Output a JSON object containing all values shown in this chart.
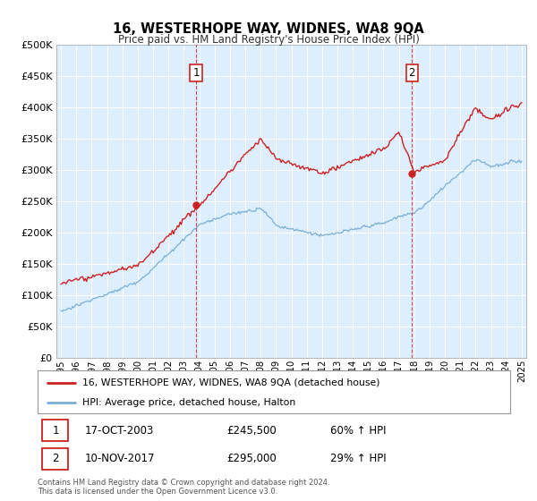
{
  "title": "16, WESTERHOPE WAY, WIDNES, WA8 9QA",
  "subtitle": "Price paid vs. HM Land Registry's House Price Index (HPI)",
  "legend_line1": "16, WESTERHOPE WAY, WIDNES, WA8 9QA (detached house)",
  "legend_line2": "HPI: Average price, detached house, Halton",
  "sale1_label": "1",
  "sale1_date": "17-OCT-2003",
  "sale1_price": "£245,500",
  "sale1_hpi": "60% ↑ HPI",
  "sale1_year": 2003.79,
  "sale1_value": 245500,
  "sale2_label": "2",
  "sale2_date": "10-NOV-2017",
  "sale2_price": "£295,000",
  "sale2_hpi": "29% ↑ HPI",
  "sale2_year": 2017.86,
  "sale2_value": 295000,
  "hpi_color": "#7bafd4",
  "price_color": "#cc2222",
  "bg_color": "#ddeeff",
  "footnote1": "Contains HM Land Registry data © Crown copyright and database right 2024.",
  "footnote2": "This data is licensed under the Open Government Licence v3.0.",
  "ylim": [
    0,
    500000
  ],
  "yticks": [
    0,
    50000,
    100000,
    150000,
    200000,
    250000,
    300000,
    350000,
    400000,
    450000,
    500000
  ],
  "xlim_start": 1994.7,
  "xlim_end": 2025.3,
  "xticks": [
    1995,
    1996,
    1997,
    1998,
    1999,
    2000,
    2001,
    2002,
    2003,
    2004,
    2005,
    2006,
    2007,
    2008,
    2009,
    2010,
    2011,
    2012,
    2013,
    2014,
    2015,
    2016,
    2017,
    2018,
    2019,
    2020,
    2021,
    2022,
    2023,
    2024,
    2025
  ]
}
